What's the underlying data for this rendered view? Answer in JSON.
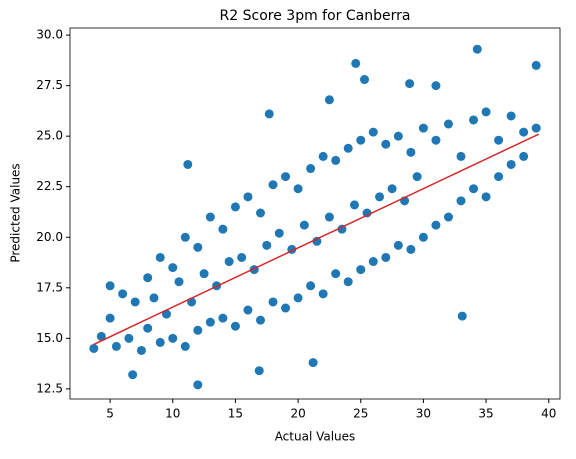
{
  "chart_data": {
    "type": "scatter",
    "title": "R2 Score 3pm for Canberra",
    "x_label": "Actual Values",
    "y_label": "Predicted Values",
    "color": "#1f77b4",
    "x": [
      5,
      5.5,
      6,
      6.5,
      7,
      7.5,
      8,
      8,
      8.5,
      9,
      9,
      9.5,
      10,
      10,
      10.5,
      11,
      11,
      11.5,
      12,
      12,
      12.5,
      13,
      13,
      13.5,
      14,
      14,
      14.5,
      15,
      15,
      15.5,
      16,
      16,
      16.5,
      17,
      17,
      17.5,
      18,
      18,
      18.5,
      19,
      19,
      19.5,
      20,
      20,
      20.5,
      21,
      21,
      21.5,
      22,
      22,
      22.5,
      23,
      23,
      23.5,
      24,
      24,
      24.5,
      25,
      25,
      25.5,
      26,
      26,
      26.5,
      27,
      27,
      27.5,
      28,
      28,
      28.5,
      29,
      29,
      29.5,
      30,
      30,
      31,
      31,
      32,
      32,
      33,
      33,
      34,
      34,
      35,
      35,
      36,
      36,
      37,
      37,
      38,
      38,
      39,
      3.7,
      4.3,
      5,
      11.2,
      17.7,
      24.6,
      34.3,
      39,
      33.1,
      12,
      6.8,
      16.9,
      21.2,
      25.3,
      28.9,
      31,
      22.5
    ],
    "y": [
      16.0,
      14.6,
      17.2,
      15.0,
      16.8,
      14.4,
      18.0,
      15.5,
      17.0,
      19.0,
      14.8,
      16.2,
      18.5,
      15.0,
      17.8,
      20.0,
      14.6,
      16.8,
      19.5,
      15.4,
      18.2,
      21.0,
      15.8,
      17.6,
      20.4,
      16.0,
      18.8,
      21.5,
      15.6,
      19.0,
      22.0,
      16.4,
      18.4,
      21.2,
      15.9,
      19.6,
      22.6,
      16.8,
      20.2,
      23.0,
      16.5,
      19.4,
      22.4,
      17.0,
      20.6,
      23.4,
      17.6,
      19.8,
      24.0,
      17.2,
      21.0,
      23.8,
      18.2,
      20.4,
      24.4,
      17.8,
      21.6,
      24.8,
      18.4,
      21.2,
      25.2,
      18.8,
      22.0,
      24.6,
      19.0,
      22.4,
      25.0,
      19.6,
      21.8,
      24.2,
      19.4,
      23.0,
      25.4,
      20.0,
      24.8,
      20.6,
      25.6,
      21.0,
      24.0,
      21.8,
      25.8,
      22.4,
      26.2,
      22.0,
      24.8,
      23.0,
      26.0,
      23.6,
      25.2,
      24.0,
      25.4,
      14.5,
      15.1,
      17.6,
      23.6,
      26.1,
      28.6,
      29.3,
      28.5,
      16.1,
      12.7,
      13.2,
      13.4,
      13.8,
      27.8,
      27.6,
      27.5,
      26.8
    ],
    "regression_line": {
      "x": [
        3.7,
        39.2
      ],
      "y": [
        14.7,
        25.1
      ],
      "color": "#d62728"
    },
    "xlim": [
      1.8,
      40.9
    ],
    "ylim": [
      12.0,
      30.35
    ],
    "xticks": [
      5,
      10,
      15,
      20,
      25,
      30,
      35,
      40
    ],
    "yticks": [
      12.5,
      {
        "value": 15,
        "label": "15.0"
      },
      17.5,
      {
        "value": 20,
        "label": "20.0"
      },
      22.5,
      {
        "value": 25,
        "label": "25.0"
      },
      27.5,
      {
        "value": 30,
        "label": "30.0"
      }
    ]
  }
}
